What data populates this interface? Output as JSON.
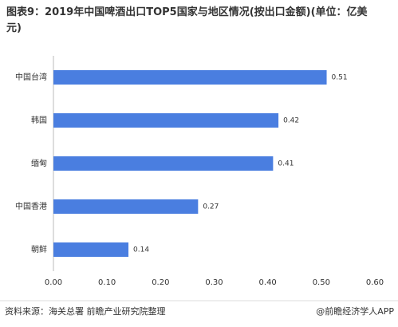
{
  "chart_data": {
    "type": "bar",
    "orientation": "horizontal",
    "title": "图表9：2019年中国啤酒出口TOP5国家与地区情况(按出口金额)(单位：亿美元)",
    "categories": [
      "中国台湾",
      "韩国",
      "缅甸",
      "中国香港",
      "朝鲜"
    ],
    "values": [
      0.51,
      0.42,
      0.41,
      0.27,
      0.14
    ],
    "color": "#4a7ee0",
    "xlim": [
      0,
      0.6
    ],
    "xticks": [
      {
        "value": 0,
        "label": "0.00"
      },
      {
        "value": 0.1,
        "label": "0.10"
      },
      {
        "value": 0.2,
        "label": "0.20"
      },
      {
        "value": 0.3,
        "label": "0.30"
      },
      {
        "value": 0.4,
        "label": "0.40"
      },
      {
        "value": 0.5,
        "label": "0.50"
      },
      {
        "value": 0.6,
        "label": "0.60"
      }
    ],
    "grid": false,
    "source": "资料来源：海关总署 前瞻产业研究院整理",
    "credit": "@前瞻经济学人APP"
  }
}
